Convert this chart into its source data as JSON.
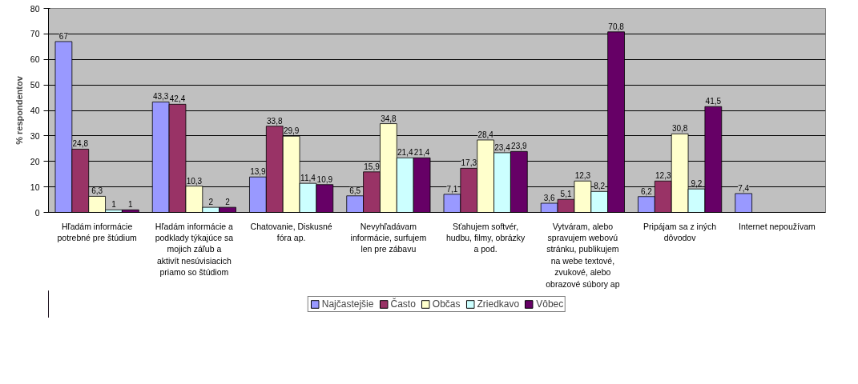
{
  "chart_data": {
    "type": "bar",
    "ylabel": "% respondentov",
    "categories": [
      "Hľadám informácie potrebné pre štúdium",
      "Hľadám informácie a podklady týkajúce sa mojich záľub a aktivít nesúvisiacich priamo so štúdiom",
      "Chatovanie, Diskusné fóra ap.",
      "Nevyhľadávam informácie, surfujem len pre zábavu",
      "Sťahujem softvér, hudbu, filmy, obrázky a pod.",
      "Vytváram, alebo spravujem webovú stránku, publikujem na webe textové, zvukové, alebo obrazové súbory ap",
      "Pripájam sa z iných dôvodov",
      "Internet nepoužívam"
    ],
    "series": [
      {
        "name": "Najčastejšie",
        "color": "#9999ff",
        "values": [
          67,
          43.3,
          13.9,
          6.5,
          7.1,
          3.6,
          6.2,
          7.4
        ],
        "value_labels": [
          "67",
          "43,3",
          "13,9",
          "6,5",
          "7,1",
          "3,6",
          "6,2",
          "7,4"
        ]
      },
      {
        "name": "Často",
        "color": "#993366",
        "values": [
          24.8,
          42.4,
          33.8,
          15.9,
          17.3,
          5.1,
          12.3,
          null
        ],
        "value_labels": [
          "24,8",
          "42,4",
          "33,8",
          "15,9",
          "17,3",
          "5,1",
          "12,3",
          null
        ]
      },
      {
        "name": "Občas",
        "color": "#ffffcc",
        "values": [
          6.3,
          10.3,
          29.9,
          34.8,
          28.4,
          12.3,
          30.8,
          null
        ],
        "value_labels": [
          "6,3",
          "10,3",
          "29,9",
          "34,8",
          "28,4",
          "12,3",
          "30,8",
          null
        ]
      },
      {
        "name": "Zriedkavo",
        "color": "#ccffff",
        "values": [
          1,
          2,
          11.4,
          21.4,
          23.4,
          8.2,
          9.2,
          null
        ],
        "value_labels": [
          "1",
          "2",
          "11,4",
          "21,4",
          "23,4",
          "8,2",
          "9,2",
          null
        ]
      },
      {
        "name": "Vôbec",
        "color": "#660066",
        "values": [
          1,
          2,
          10.9,
          21.4,
          23.9,
          70.8,
          41.5,
          null
        ],
        "value_labels": [
          "1",
          "2",
          "10,9",
          "21,4",
          "23,9",
          "70,8",
          "41,5",
          null
        ]
      }
    ],
    "ylim": [
      0,
      80
    ],
    "yticks": [
      0,
      10,
      20,
      30,
      40,
      50,
      60,
      70,
      80
    ],
    "grid": "y",
    "legend": "bottom"
  }
}
